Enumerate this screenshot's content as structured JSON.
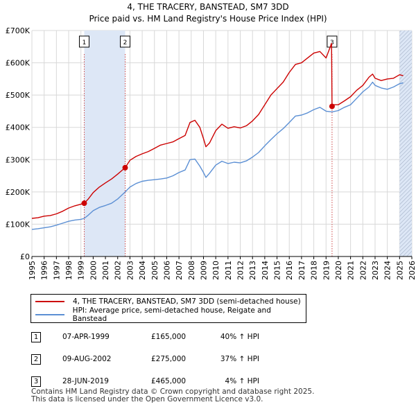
{
  "chart_data": {
    "type": "line",
    "title": "4, THE TRACERY, BANSTEAD, SM7 3DD",
    "subtitle": "Price paid vs. HM Land Registry's House Price Index (HPI)",
    "xlim": [
      1995,
      2026
    ],
    "ylim": [
      0,
      700000
    ],
    "x_ticks": [
      "1995",
      "1996",
      "1997",
      "1998",
      "1999",
      "2000",
      "2001",
      "2002",
      "2003",
      "2004",
      "2005",
      "2006",
      "2007",
      "2008",
      "2009",
      "2010",
      "2011",
      "2012",
      "2013",
      "2014",
      "2015",
      "2016",
      "2017",
      "2018",
      "2019",
      "2020",
      "2021",
      "2022",
      "2023",
      "2024",
      "2025",
      "2026"
    ],
    "y_ticks": [
      {
        "value": 0,
        "label": "£0"
      },
      {
        "value": 100000,
        "label": "£100K"
      },
      {
        "value": 200000,
        "label": "£200K"
      },
      {
        "value": 300000,
        "label": "£300K"
      },
      {
        "value": 400000,
        "label": "£400K"
      },
      {
        "value": 500000,
        "label": "£500K"
      },
      {
        "value": 600000,
        "label": "£600K"
      },
      {
        "value": 700000,
        "label": "£700K"
      }
    ],
    "grid": true,
    "colors": {
      "property": "#cc0000",
      "hpi": "#5b8fd4",
      "shade": "#dde7f6",
      "marker_line": "#cc4444"
    },
    "shaded_ranges": [
      [
        1999.27,
        2002.61
      ],
      [
        2025.0,
        2026.0
      ]
    ],
    "hatched_range": [
      2025.0,
      2026.0
    ],
    "series": [
      {
        "name": "4, THE TRACERY, BANSTEAD, SM7 3DD (semi-detached house)",
        "color": "#cc0000",
        "x": [
          1995.0,
          1995.5,
          1996.0,
          1996.5,
          1997.0,
          1997.5,
          1998.0,
          1998.5,
          1999.0,
          1999.27,
          1999.6,
          2000.0,
          2000.5,
          2001.0,
          2001.5,
          2002.0,
          2002.61,
          2003.0,
          2003.5,
          2004.0,
          2004.5,
          2005.0,
          2005.5,
          2006.0,
          2006.5,
          2007.0,
          2007.5,
          2007.9,
          2008.3,
          2008.7,
          2009.0,
          2009.2,
          2009.5,
          2010.0,
          2010.5,
          2011.0,
          2011.5,
          2012.0,
          2012.5,
          2013.0,
          2013.5,
          2014.0,
          2014.5,
          2015.0,
          2015.5,
          2016.0,
          2016.5,
          2017.0,
          2017.5,
          2018.0,
          2018.5,
          2019.0,
          2019.45,
          2019.49,
          2019.6,
          2020.0,
          2020.5,
          2021.0,
          2021.5,
          2022.0,
          2022.5,
          2022.8,
          2023.0,
          2023.5,
          2024.0,
          2024.5,
          2025.0,
          2025.3
        ],
        "values": [
          118000,
          120000,
          125000,
          127000,
          132000,
          140000,
          150000,
          157000,
          162000,
          165000,
          178000,
          198000,
          215000,
          228000,
          240000,
          255000,
          275000,
          298000,
          310000,
          318000,
          325000,
          335000,
          345000,
          350000,
          355000,
          365000,
          375000,
          415000,
          422000,
          400000,
          365000,
          340000,
          352000,
          390000,
          410000,
          397000,
          402000,
          398000,
          405000,
          420000,
          440000,
          470000,
          500000,
          520000,
          540000,
          570000,
          595000,
          600000,
          615000,
          630000,
          635000,
          615000,
          660000,
          465000,
          470000,
          470000,
          482000,
          495000,
          515000,
          530000,
          555000,
          565000,
          552000,
          545000,
          550000,
          552000,
          563000,
          560000
        ]
      },
      {
        "name": "HPI: Average price, semi-detached house, Reigate and Banstead",
        "color": "#5b8fd4",
        "x": [
          1995.0,
          1995.5,
          1996.0,
          1996.5,
          1997.0,
          1997.5,
          1998.0,
          1998.5,
          1999.0,
          1999.27,
          1999.6,
          2000.0,
          2000.5,
          2001.0,
          2001.5,
          2002.0,
          2002.61,
          2003.0,
          2003.5,
          2004.0,
          2004.5,
          2005.0,
          2005.5,
          2006.0,
          2006.5,
          2007.0,
          2007.5,
          2007.9,
          2008.3,
          2008.7,
          2009.0,
          2009.2,
          2009.5,
          2010.0,
          2010.5,
          2011.0,
          2011.5,
          2012.0,
          2012.5,
          2013.0,
          2013.5,
          2014.0,
          2014.5,
          2015.0,
          2015.5,
          2016.0,
          2016.5,
          2017.0,
          2017.5,
          2018.0,
          2018.5,
          2019.0,
          2019.49,
          2020.0,
          2020.5,
          2021.0,
          2021.5,
          2022.0,
          2022.5,
          2022.8,
          2023.0,
          2023.5,
          2024.0,
          2024.5,
          2025.0,
          2025.3
        ],
        "values": [
          84000,
          86000,
          89000,
          92000,
          97000,
          103000,
          109000,
          113000,
          115000,
          118000,
          128000,
          142000,
          152000,
          158000,
          165000,
          178000,
          200000,
          215000,
          226000,
          233000,
          236000,
          238000,
          240000,
          243000,
          250000,
          260000,
          268000,
          300000,
          302000,
          280000,
          260000,
          245000,
          258000,
          283000,
          295000,
          288000,
          292000,
          290000,
          296000,
          308000,
          322000,
          343000,
          362000,
          380000,
          396000,
          415000,
          435000,
          438000,
          445000,
          455000,
          462000,
          450000,
          448000,
          452000,
          462000,
          470000,
          490000,
          510000,
          525000,
          540000,
          530000,
          522000,
          518000,
          525000,
          535000,
          538000
        ]
      }
    ],
    "sales": [
      {
        "num": "1",
        "x": 1999.27,
        "value": 165000
      },
      {
        "num": "2",
        "x": 2002.61,
        "value": 275000
      },
      {
        "num": "3",
        "x": 2019.49,
        "value": 465000
      }
    ]
  },
  "legend": {
    "property_label": "4, THE TRACERY, BANSTEAD, SM7 3DD (semi-detached house)",
    "hpi_label": "HPI: Average price, semi-detached house, Reigate and Banstead"
  },
  "sales_table": [
    {
      "num": "1",
      "date": "07-APR-1999",
      "price": "£165,000",
      "hpi": "40% ↑ HPI"
    },
    {
      "num": "2",
      "date": "09-AUG-2002",
      "price": "£275,000",
      "hpi": "37% ↑ HPI"
    },
    {
      "num": "3",
      "date": "28-JUN-2019",
      "price": "£465,000",
      "hpi": "4% ↑ HPI"
    }
  ],
  "footer": {
    "line1": "Contains HM Land Registry data © Crown copyright and database right 2025.",
    "line2": "This data is licensed under the Open Government Licence v3.0."
  }
}
